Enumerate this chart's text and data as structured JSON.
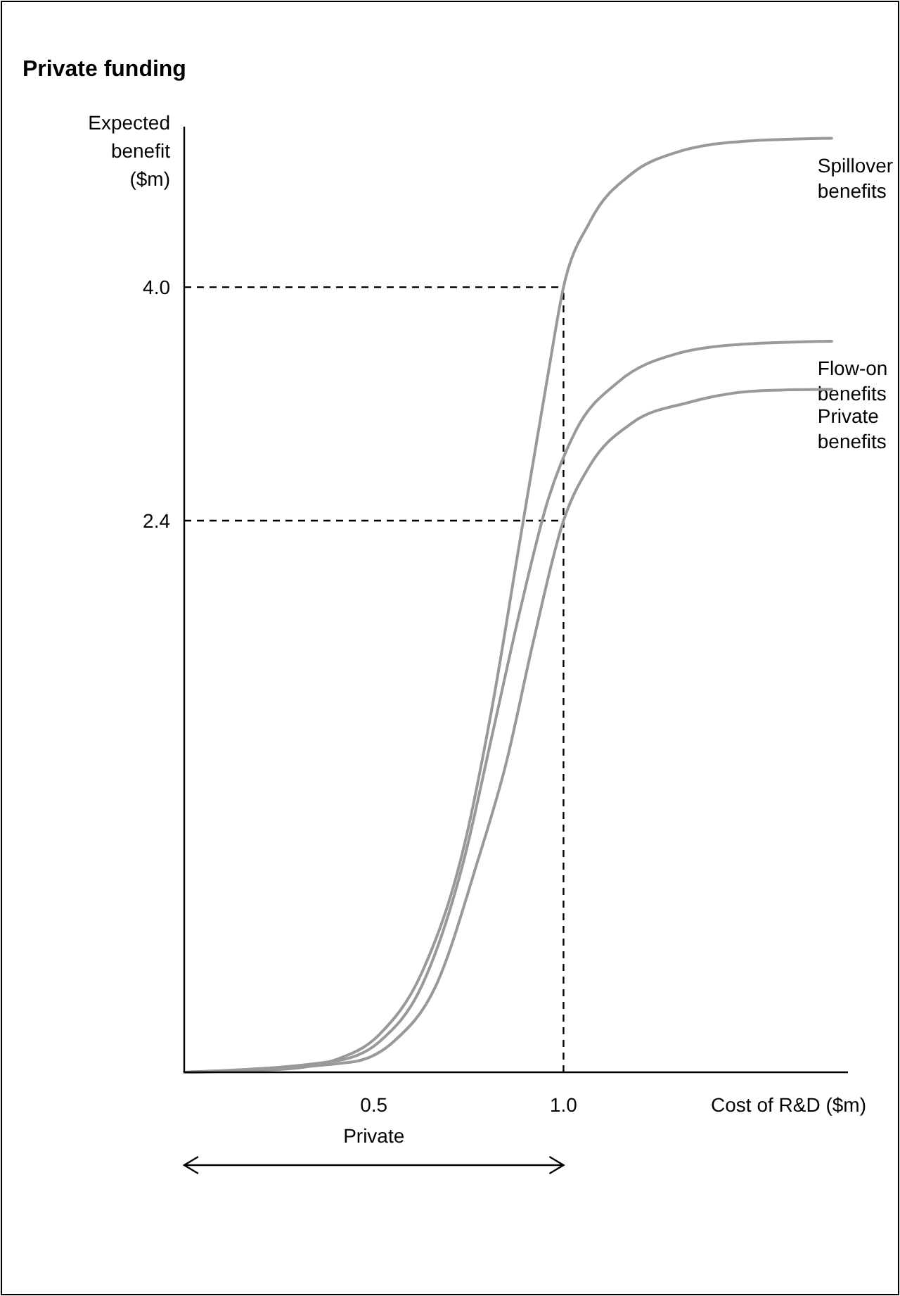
{
  "chart_data": {
    "type": "line",
    "title": "Private funding",
    "xlabel": "Cost of R&D ($m)",
    "ylabel": "Expected benefit ($m)",
    "xlim": [
      0,
      1.75
    ],
    "ylim": [
      -1.38,
      5.1
    ],
    "xticks": [
      {
        "value": 0.5,
        "label": "0.5"
      },
      {
        "value": 1,
        "label": "1.0"
      }
    ],
    "yticks": [
      {
        "value": 2.4,
        "label": "2.4"
      },
      {
        "value": 4,
        "label": "4.0"
      }
    ],
    "grid": false,
    "legend": false,
    "marker": "none",
    "line_style": "solid",
    "series": [
      {
        "name": "Spillover benefits",
        "color": "#999999",
        "x": [
          0,
          0.256,
          0.404,
          0.515,
          0.626,
          0.737,
          0.811,
          0.885,
          0.959,
          1.0,
          1.07,
          1.181,
          1.293,
          1.478,
          1.707
        ],
        "values": [
          -1.38,
          -1.36,
          -1.29,
          -1.12,
          -0.7,
          0.16,
          1.11,
          2.26,
          3.4,
          4.0,
          4.45,
          4.78,
          4.92,
          5.0,
          5.02
        ]
      },
      {
        "name": "Flow-on benefits",
        "color": "#999999",
        "x": [
          0,
          0.404,
          0.515,
          0.626,
          0.737,
          0.811,
          0.885,
          0.959,
          1.033,
          1.144,
          1.293,
          1.478,
          1.707
        ],
        "values": [
          -1.38,
          -1.3,
          -1.17,
          -0.79,
          0.07,
          0.92,
          1.78,
          2.54,
          3.02,
          3.35,
          3.54,
          3.61,
          3.63
        ]
      },
      {
        "name": "Private benefits",
        "color": "#999999",
        "x": [
          0,
          0.441,
          0.552,
          0.663,
          0.774,
          0.848,
          0.922,
          1.0,
          1.07,
          1.181,
          1.33,
          1.515,
          1.707
        ],
        "values": [
          -1.38,
          -1.31,
          -1.17,
          -0.79,
          0.07,
          0.73,
          1.59,
          2.4,
          2.78,
          3.07,
          3.21,
          3.29,
          3.3
        ]
      }
    ],
    "ref_lines": [
      {
        "axis": "y",
        "value": 4.0,
        "line_style": "dashed",
        "color": "#000000"
      },
      {
        "axis": "y",
        "value": 2.4,
        "line_style": "dashed",
        "color": "#000000"
      },
      {
        "axis": "x",
        "value": 1.0,
        "line_style": "dashed",
        "color": "#000000"
      }
    ],
    "annotations": [
      "Private"
    ]
  }
}
